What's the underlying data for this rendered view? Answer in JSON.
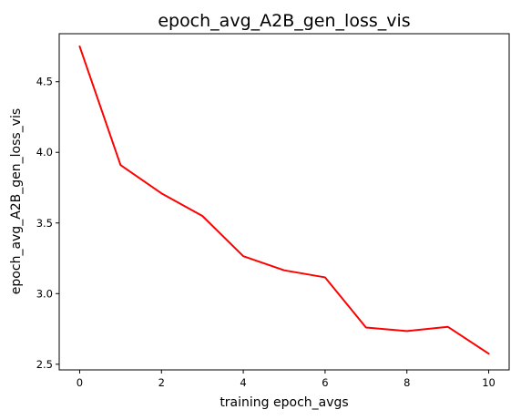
{
  "chart_data": {
    "type": "line",
    "title": "epoch_avg_A2B_gen_loss_vis",
    "xlabel": "training epoch_avgs",
    "ylabel": "epoch_avg_A2B_gen_loss_vis",
    "x": [
      0,
      1,
      2,
      3,
      4,
      5,
      6,
      7,
      8,
      9,
      10
    ],
    "series": [
      {
        "values": [
          4.75,
          3.91,
          3.71,
          3.55,
          3.265,
          3.165,
          3.115,
          2.76,
          2.735,
          2.765,
          2.575
        ],
        "color": "#ff0000"
      }
    ],
    "xlim": [
      -0.5,
      10.5
    ],
    "ylim": [
      2.46,
      4.84
    ],
    "xticks": [
      0,
      2,
      4,
      6,
      8,
      10
    ],
    "xtick_labels": [
      "0",
      "2",
      "4",
      "6",
      "8",
      "10"
    ],
    "yticks": [
      2.5,
      3.0,
      3.5,
      4.0,
      4.5
    ],
    "ytick_labels": [
      "2.5",
      "3.0",
      "3.5",
      "4.0",
      "4.5"
    ],
    "grid": false,
    "legend": "none"
  }
}
